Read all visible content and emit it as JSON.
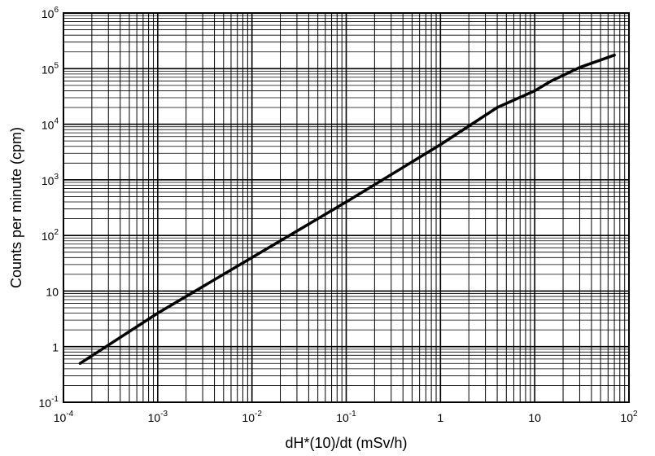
{
  "chart_data": {
    "type": "line",
    "xscale": "log",
    "yscale": "log",
    "xlim": [
      0.0001,
      100
    ],
    "ylim": [
      0.1,
      1000000
    ],
    "grid": true,
    "xlabel": "dH*(10)/dt (mSv/h)",
    "ylabel": "Counts per minute (cpm)",
    "x_ticks": [
      {
        "value": 0.0001,
        "base": "10",
        "exp": "-4"
      },
      {
        "value": 0.001,
        "base": "10",
        "exp": "-3"
      },
      {
        "value": 0.01,
        "base": "10",
        "exp": "-2"
      },
      {
        "value": 0.1,
        "base": "10",
        "exp": "-1"
      },
      {
        "value": 1,
        "base": "1",
        "exp": ""
      },
      {
        "value": 10,
        "base": "10",
        "exp": ""
      },
      {
        "value": 100,
        "base": "10",
        "exp": "2"
      }
    ],
    "y_ticks": [
      {
        "value": 0.1,
        "base": "10",
        "exp": "-1"
      },
      {
        "value": 1,
        "base": "1",
        "exp": ""
      },
      {
        "value": 10,
        "base": "10",
        "exp": ""
      },
      {
        "value": 100,
        "base": "10",
        "exp": "2"
      },
      {
        "value": 1000,
        "base": "10",
        "exp": "3"
      },
      {
        "value": 10000,
        "base": "10",
        "exp": "4"
      },
      {
        "value": 100000,
        "base": "10",
        "exp": "5"
      },
      {
        "value": 1000000,
        "base": "10",
        "exp": "6"
      }
    ],
    "series": [
      {
        "color": "#000000",
        "x": [
          0.00015,
          0.001,
          0.01,
          0.1,
          1,
          4,
          10,
          15,
          30,
          70
        ],
        "y": [
          0.5,
          4,
          40,
          400,
          4300,
          20000,
          40000,
          60000,
          105000,
          175000
        ]
      }
    ]
  }
}
